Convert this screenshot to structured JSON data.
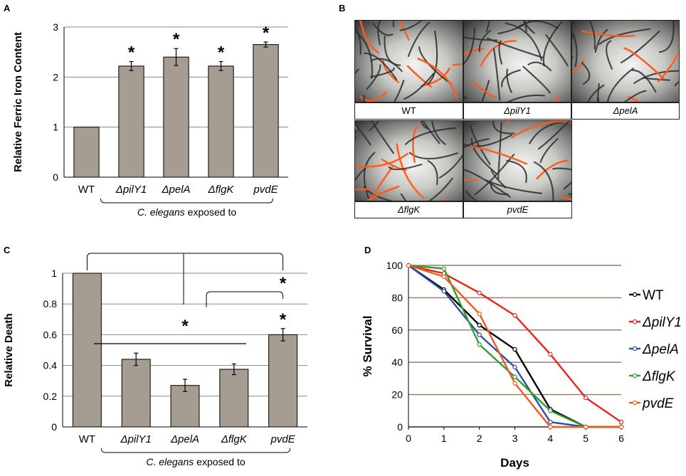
{
  "panel_labels": {
    "a": "A",
    "b": "B",
    "c": "C",
    "d": "D"
  },
  "panel_b": {
    "images": [
      {
        "label": "WT",
        "italic": false
      },
      {
        "label": "ΔpilY1",
        "italic": true
      },
      {
        "label": "ΔpelA",
        "italic": true
      },
      {
        "label": "ΔflgK",
        "italic": true
      },
      {
        "label": "pvdE",
        "italic": true
      }
    ],
    "worm_color": "#2e2e2e",
    "stain_color": "#ff5a1a"
  },
  "chart_data": [
    {
      "id": "A",
      "type": "bar",
      "categories": [
        "WT",
        "ΔpilY1",
        "ΔpelA",
        "ΔflgK",
        "pvdE"
      ],
      "values": [
        1.0,
        2.22,
        2.4,
        2.22,
        2.65
      ],
      "errors": [
        0.0,
        0.09,
        0.17,
        0.09,
        0.05
      ],
      "significance": [
        "",
        "*",
        "*",
        "*",
        "*"
      ],
      "ylabel": "Relative Ferric Iron Content",
      "ylim": [
        0,
        3
      ],
      "yticks": [
        0,
        1,
        2,
        3
      ],
      "grid": true,
      "bracket_label_italic": "C. elegans",
      "bracket_label_rest": " exposed to",
      "bar_color": "#a59d92"
    },
    {
      "id": "C",
      "type": "bar",
      "categories": [
        "WT",
        "ΔpilY1",
        "ΔpelA",
        "ΔflgK",
        "pvdE"
      ],
      "values": [
        1.0,
        0.44,
        0.27,
        0.375,
        0.6
      ],
      "errors": [
        0.0,
        0.04,
        0.04,
        0.035,
        0.04
      ],
      "significance": [
        "",
        "",
        "",
        "",
        "*"
      ],
      "annotations": [
        "*",
        "*"
      ],
      "ylabel": "Relative Death",
      "ylim": [
        0,
        1
      ],
      "yticks": [
        0,
        0.2,
        0.4,
        0.6,
        0.8,
        1
      ],
      "ytick_labels": [
        "0",
        "0.2",
        "0.4",
        "0.6",
        "0.8",
        "1"
      ],
      "grid": true,
      "bracket_label_italic": "C. elegans",
      "bracket_label_rest": " exposed to",
      "bar_color": "#a59d92"
    },
    {
      "id": "D",
      "type": "line",
      "x": [
        0,
        1,
        2,
        3,
        4,
        5,
        6
      ],
      "xlabel": "Days",
      "ylabel": "% Survival",
      "ylim": [
        0,
        100
      ],
      "yticks": [
        0,
        20,
        40,
        60,
        80,
        100
      ],
      "xticks": [
        0,
        1,
        2,
        3,
        4,
        5,
        6
      ],
      "grid": true,
      "legend_position": "right",
      "series": [
        {
          "name": "WT",
          "italic": false,
          "color": "#000000",
          "points": [
            [
              0,
              100
            ],
            [
              1,
              85
            ],
            [
              2,
              63
            ],
            [
              3,
              48
            ],
            [
              4,
              11
            ],
            [
              5,
              0
            ],
            [
              6,
              0
            ]
          ]
        },
        {
          "name": "ΔpilY1",
          "italic": true,
          "color": "#e8231f",
          "points": [
            [
              0,
              100
            ],
            [
              1,
              95
            ],
            [
              2,
              83
            ],
            [
              3,
              69
            ],
            [
              4,
              45
            ],
            [
              5,
              18
            ],
            [
              6,
              3
            ]
          ]
        },
        {
          "name": "ΔpelA",
          "italic": true,
          "color": "#2a4ea3",
          "points": [
            [
              0,
              100
            ],
            [
              1,
              84
            ],
            [
              2,
              57
            ],
            [
              3,
              37
            ],
            [
              4,
              3
            ],
            [
              5,
              0
            ],
            [
              6,
              0
            ]
          ]
        },
        {
          "name": "ΔflgK",
          "italic": true,
          "color": "#2f9e31",
          "points": [
            [
              0,
              100
            ],
            [
              1,
              98
            ],
            [
              2,
              51
            ],
            [
              3,
              31
            ],
            [
              4,
              10
            ],
            [
              5,
              0
            ],
            [
              6,
              0
            ]
          ]
        },
        {
          "name": "pvdE",
          "italic": true,
          "color": "#f05a1f",
          "points": [
            [
              0,
              100
            ],
            [
              1,
              93
            ],
            [
              2,
              70
            ],
            [
              3,
              27
            ],
            [
              4,
              0
            ],
            [
              5,
              0
            ],
            [
              6,
              0
            ]
          ]
        }
      ]
    }
  ]
}
